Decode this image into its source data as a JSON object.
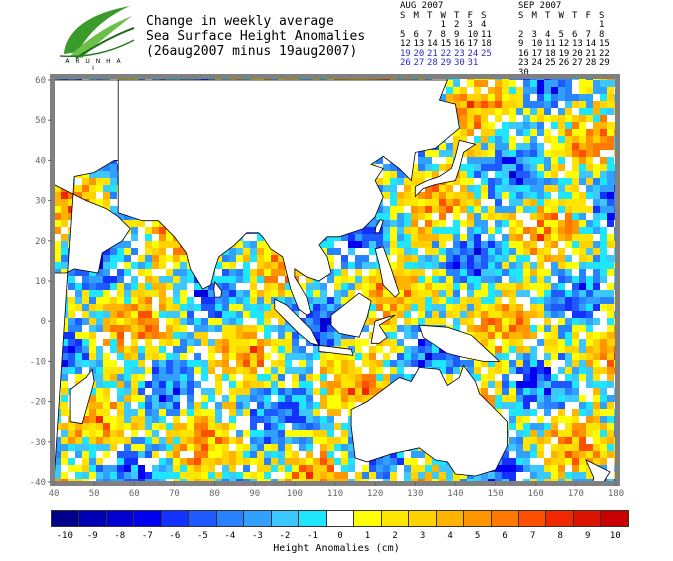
{
  "logo": {
    "name": "leaf-logo-icon",
    "caption": "A R U N   H A I"
  },
  "title": {
    "line1": "Change in weekly average",
    "line2": "Sea Surface Height Anomalies",
    "line3": "(26aug2007 minus 19aug2007)"
  },
  "calendars": [
    {
      "month": "AUG 2007",
      "weekdays": [
        "S",
        "M",
        "T",
        "W",
        "T",
        "F",
        "S"
      ],
      "weeks": [
        [
          "",
          "",
          "",
          "1",
          "2",
          "3",
          "4"
        ],
        [
          "5",
          "6",
          "7",
          "8",
          "9",
          "10",
          "11"
        ],
        [
          "12",
          "13",
          "14",
          "15",
          "16",
          "17",
          "18"
        ],
        [
          "19",
          "20",
          "21",
          "22",
          "23",
          "24",
          "25"
        ],
        [
          "26",
          "27",
          "28",
          "29",
          "30",
          "31",
          ""
        ]
      ],
      "highlight_from": "19"
    },
    {
      "month": "SEP 2007",
      "weekdays": [
        "S",
        "M",
        "T",
        "W",
        "T",
        "F",
        "S"
      ],
      "weeks": [
        [
          "",
          "",
          "",
          "",
          "",
          "",
          "1"
        ],
        [
          "2",
          "3",
          "4",
          "5",
          "6",
          "7",
          "8"
        ],
        [
          "9",
          "10",
          "11",
          "12",
          "13",
          "14",
          "15"
        ],
        [
          "16",
          "17",
          "18",
          "19",
          "20",
          "21",
          "22"
        ],
        [
          "23",
          "24",
          "25",
          "26",
          "27",
          "28",
          "29"
        ],
        [
          "30",
          "",
          "",
          "",
          "",
          "",
          ""
        ]
      ],
      "highlight_from": ""
    }
  ],
  "map": {
    "lon_ticks": [
      "40",
      "50",
      "60",
      "70",
      "80",
      "90",
      "100",
      "110",
      "120",
      "130",
      "140",
      "150",
      "160",
      "170",
      "180"
    ],
    "lat_ticks": [
      "60",
      "50",
      "40",
      "30",
      "20",
      "10",
      "0",
      "-10",
      "-20",
      "-30",
      "-40"
    ],
    "lon_range": [
      40,
      180
    ],
    "lat_range": [
      -40,
      60
    ],
    "frame_color": "#808080"
  },
  "legend": {
    "title": "Height Anomalies (cm)",
    "labels": [
      "-10",
      "-9",
      "-8",
      "-7",
      "-6",
      "-5",
      "-4",
      "-3",
      "-2",
      "-1",
      "0",
      "1",
      "2",
      "3",
      "4",
      "5",
      "6",
      "7",
      "8",
      "9",
      "10"
    ],
    "colors": [
      "#00008a",
      "#0000b4",
      "#0000d2",
      "#0000f0",
      "#1432ff",
      "#1e5aff",
      "#2882ff",
      "#32a0ff",
      "#3cc8ff",
      "#1ee6ff",
      "#ffffff",
      "#ffff00",
      "#ffe600",
      "#ffd200",
      "#ffb400",
      "#ff9600",
      "#ff7800",
      "#ff5000",
      "#f02800",
      "#dc1400",
      "#c80000"
    ]
  }
}
